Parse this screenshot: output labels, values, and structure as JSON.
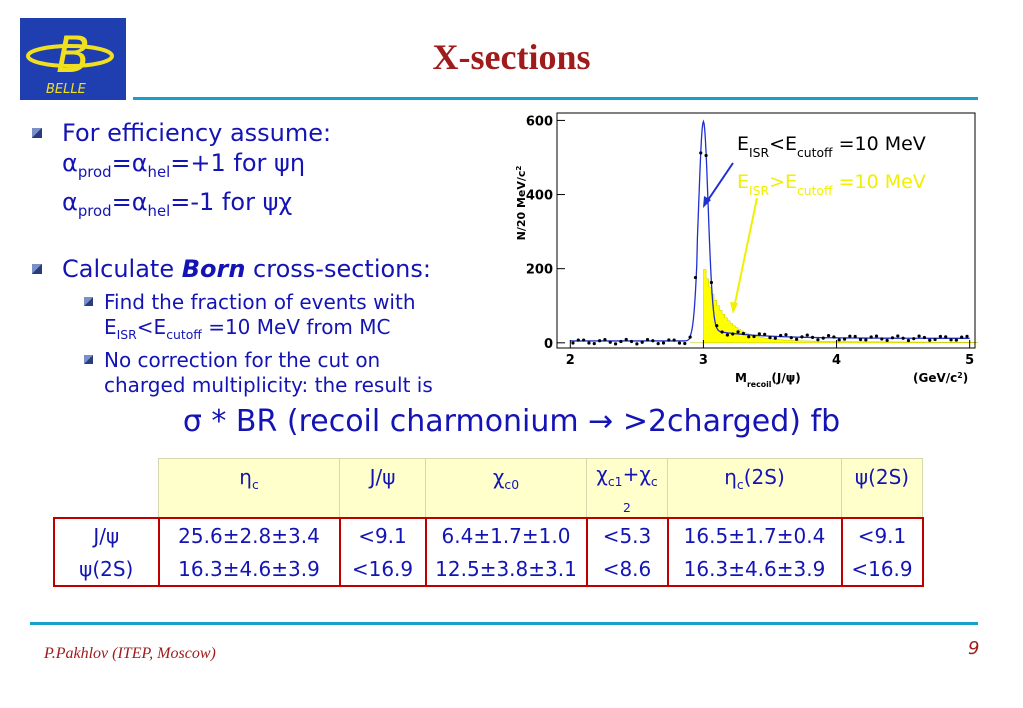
{
  "header": {
    "logo_text": "BELLE",
    "title": "X-sections"
  },
  "bullets": [
    {
      "lines": [
        [
          "For efficiency assume:"
        ],
        [
          "α",
          "prod",
          "=α",
          "hel",
          "=+1 for ψη"
        ],
        [
          "α",
          "prod",
          "=α",
          "hel",
          "=-1 for ψχ"
        ]
      ]
    },
    {
      "lines": [
        [
          "Calculate ",
          "Born",
          " cross-sections:"
        ]
      ],
      "sub": [
        {
          "lines": [
            [
              "Find the fraction of events with"
            ],
            [
              "E",
              "ISR",
              "<E",
              "cutoff",
              " =10 MeV from MC"
            ]
          ]
        },
        {
          "lines": [
            [
              "No correction for the cut on"
            ],
            [
              "charged multiplicity: the result is"
            ]
          ]
        }
      ]
    }
  ],
  "plot": {
    "y_label": [
      "N/20 MeV/c",
      "2"
    ],
    "x_label": [
      "M",
      "recoil",
      "(J/ψ)"
    ],
    "x_unit": [
      "(GeV/c",
      "2",
      ")"
    ],
    "legend": [
      [
        "E",
        "ISR",
        "<E",
        "cutoff",
        " =10 MeV"
      ],
      [
        "E",
        "ISR",
        ">E",
        "cutoff",
        " =10 MeV"
      ]
    ],
    "xlim": [
      1.9,
      5.04
    ],
    "ylim": [
      -14,
      620
    ],
    "xticks": [
      2,
      3,
      4,
      5
    ],
    "yticks": [
      0,
      200,
      400,
      600
    ]
  },
  "formula": "σ * BR (recoil charmonium → >2charged) fb",
  "table": {
    "header": [
      [
        "η",
        "c"
      ],
      [
        "J/ψ"
      ],
      [
        "χ",
        "c0"
      ],
      [
        "χ",
        "c1",
        "+χ",
        "c",
        "2"
      ],
      [
        "η",
        "c",
        "(2S)"
      ],
      [
        "ψ(2S)"
      ]
    ],
    "rows": [
      [
        "J/ψ",
        "25.6±2.8±3.4",
        "<9.1",
        "6.4±1.7±1.0",
        "<5.3",
        "16.5±1.7±0.4",
        "<9.1"
      ],
      [
        "ψ(2S)",
        "16.3±4.6±3.9",
        "<16.9",
        "12.5±3.8±3.1",
        "<8.6",
        "16.3±4.6±3.9",
        "<16.9"
      ]
    ]
  },
  "footer": {
    "author": "P.Pakhlov (ITEP, Moscow)",
    "page": "9"
  }
}
